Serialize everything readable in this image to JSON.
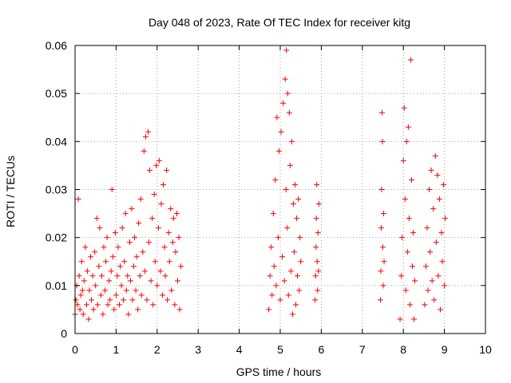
{
  "chart_data": {
    "type": "scatter",
    "title": "Day 048 of 2023, Rate Of TEC Index for receiver kitg",
    "xlabel": "GPS time / hours",
    "ylabel": "ROTI / TECUs",
    "xlim": [
      0,
      10
    ],
    "ylim": [
      0,
      0.06
    ],
    "xticks": [
      "0",
      "1",
      "2",
      "3",
      "4",
      "5",
      "6",
      "7",
      "8",
      "9",
      "10"
    ],
    "yticks": [
      "0",
      "0.01",
      "0.02",
      "0.03",
      "0.04",
      "0.05",
      "0.06"
    ],
    "grid": true,
    "marker": "+",
    "color": "#ff0000",
    "series": [
      {
        "name": "ROTI",
        "points": [
          [
            0.0,
            0.004
          ],
          [
            0.02,
            0.007
          ],
          [
            0.04,
            0.01
          ],
          [
            0.06,
            0.006
          ],
          [
            0.08,
            0.028
          ],
          [
            0.1,
            0.012
          ],
          [
            0.12,
            0.005
          ],
          [
            0.14,
            0.008
          ],
          [
            0.16,
            0.015
          ],
          [
            0.18,
            0.009
          ],
          [
            0.2,
            0.004
          ],
          [
            0.22,
            0.011
          ],
          [
            0.25,
            0.018
          ],
          [
            0.28,
            0.006
          ],
          [
            0.3,
            0.013
          ],
          [
            0.33,
            0.003
          ],
          [
            0.35,
            0.009
          ],
          [
            0.38,
            0.016
          ],
          [
            0.4,
            0.007
          ],
          [
            0.43,
            0.012
          ],
          [
            0.45,
            0.005
          ],
          [
            0.48,
            0.017
          ],
          [
            0.5,
            0.01
          ],
          [
            0.53,
            0.024
          ],
          [
            0.55,
            0.006
          ],
          [
            0.58,
            0.014
          ],
          [
            0.6,
            0.022
          ],
          [
            0.63,
            0.008
          ],
          [
            0.65,
            0.012
          ],
          [
            0.68,
            0.004
          ],
          [
            0.7,
            0.018
          ],
          [
            0.73,
            0.009
          ],
          [
            0.75,
            0.015
          ],
          [
            0.78,
            0.02
          ],
          [
            0.8,
            0.006
          ],
          [
            0.83,
            0.011
          ],
          [
            0.85,
            0.007
          ],
          [
            0.88,
            0.013
          ],
          [
            0.9,
            0.03
          ],
          [
            0.92,
            0.016
          ],
          [
            0.95,
            0.005
          ],
          [
            0.98,
            0.021
          ],
          [
            1.0,
            0.008
          ],
          [
            1.03,
            0.012
          ],
          [
            1.05,
            0.018
          ],
          [
            1.08,
            0.006
          ],
          [
            1.1,
            0.014
          ],
          [
            1.13,
            0.01
          ],
          [
            1.15,
            0.022
          ],
          [
            1.18,
            0.007
          ],
          [
            1.2,
            0.015
          ],
          [
            1.23,
            0.025
          ],
          [
            1.25,
            0.009
          ],
          [
            1.28,
            0.012
          ],
          [
            1.3,
            0.004
          ],
          [
            1.33,
            0.019
          ],
          [
            1.35,
            0.011
          ],
          [
            1.38,
            0.026
          ],
          [
            1.4,
            0.007
          ],
          [
            1.43,
            0.014
          ],
          [
            1.45,
            0.02
          ],
          [
            1.48,
            0.009
          ],
          [
            1.5,
            0.016
          ],
          [
            1.53,
            0.005
          ],
          [
            1.55,
            0.023
          ],
          [
            1.58,
            0.012
          ],
          [
            1.6,
            0.028
          ],
          [
            1.62,
            0.008
          ],
          [
            1.65,
            0.017
          ],
          [
            1.68,
            0.038
          ],
          [
            1.7,
            0.013
          ],
          [
            1.72,
            0.041
          ],
          [
            1.75,
            0.007
          ],
          [
            1.78,
            0.042
          ],
          [
            1.8,
            0.019
          ],
          [
            1.82,
            0.034
          ],
          [
            1.85,
            0.011
          ],
          [
            1.88,
            0.024
          ],
          [
            1.9,
            0.006
          ],
          [
            1.93,
            0.029
          ],
          [
            1.95,
            0.015
          ],
          [
            1.98,
            0.035
          ],
          [
            2.0,
            0.01
          ],
          [
            2.03,
            0.022
          ],
          [
            2.05,
            0.036
          ],
          [
            2.08,
            0.013
          ],
          [
            2.1,
            0.027
          ],
          [
            2.13,
            0.008
          ],
          [
            2.15,
            0.031
          ],
          [
            2.18,
            0.018
          ],
          [
            2.2,
            0.012
          ],
          [
            2.23,
            0.034
          ],
          [
            2.25,
            0.007
          ],
          [
            2.28,
            0.021
          ],
          [
            2.3,
            0.015
          ],
          [
            2.33,
            0.026
          ],
          [
            2.35,
            0.009
          ],
          [
            2.38,
            0.019
          ],
          [
            2.4,
            0.024
          ],
          [
            2.43,
            0.006
          ],
          [
            2.45,
            0.017
          ],
          [
            2.48,
            0.025
          ],
          [
            2.5,
            0.011
          ],
          [
            2.53,
            0.02
          ],
          [
            2.55,
            0.005
          ],
          [
            2.58,
            0.014
          ],
          [
            4.72,
            0.005
          ],
          [
            4.75,
            0.012
          ],
          [
            4.78,
            0.018
          ],
          [
            4.8,
            0.008
          ],
          [
            4.83,
            0.025
          ],
          [
            4.85,
            0.014
          ],
          [
            4.88,
            0.032
          ],
          [
            4.9,
            0.01
          ],
          [
            4.92,
            0.045
          ],
          [
            4.95,
            0.02
          ],
          [
            4.97,
            0.038
          ],
          [
            5.0,
            0.007
          ],
          [
            5.02,
            0.042
          ],
          [
            5.05,
            0.016
          ],
          [
            5.07,
            0.048
          ],
          [
            5.1,
            0.011
          ],
          [
            5.12,
            0.053
          ],
          [
            5.14,
            0.03
          ],
          [
            5.15,
            0.059
          ],
          [
            5.17,
            0.022
          ],
          [
            5.18,
            0.05
          ],
          [
            5.2,
            0.008
          ],
          [
            5.22,
            0.046
          ],
          [
            5.24,
            0.035
          ],
          [
            5.26,
            0.013
          ],
          [
            5.28,
            0.04
          ],
          [
            5.3,
            0.004
          ],
          [
            5.32,
            0.027
          ],
          [
            5.34,
            0.017
          ],
          [
            5.36,
            0.031
          ],
          [
            5.38,
            0.006
          ],
          [
            5.4,
            0.024
          ],
          [
            5.42,
            0.012
          ],
          [
            5.44,
            0.028
          ],
          [
            5.46,
            0.009
          ],
          [
            5.48,
            0.02
          ],
          [
            5.5,
            0.015
          ],
          [
            5.85,
            0.007
          ],
          [
            5.86,
            0.012
          ],
          [
            5.87,
            0.018
          ],
          [
            5.88,
            0.024
          ],
          [
            5.89,
            0.031
          ],
          [
            5.9,
            0.015
          ],
          [
            5.91,
            0.009
          ],
          [
            5.92,
            0.021
          ],
          [
            5.93,
            0.013
          ],
          [
            5.94,
            0.027
          ],
          [
            7.44,
            0.007
          ],
          [
            7.45,
            0.013
          ],
          [
            7.46,
            0.022
          ],
          [
            7.47,
            0.03
          ],
          [
            7.48,
            0.046
          ],
          [
            7.49,
            0.04
          ],
          [
            7.5,
            0.018
          ],
          [
            7.51,
            0.01
          ],
          [
            7.52,
            0.025
          ],
          [
            7.53,
            0.015
          ],
          [
            7.92,
            0.003
          ],
          [
            7.95,
            0.012
          ],
          [
            7.97,
            0.02
          ],
          [
            8.0,
            0.036
          ],
          [
            8.02,
            0.047
          ],
          [
            8.04,
            0.028
          ],
          [
            8.06,
            0.009
          ],
          [
            8.08,
            0.04
          ],
          [
            8.1,
            0.017
          ],
          [
            8.12,
            0.043
          ],
          [
            8.14,
            0.024
          ],
          [
            8.16,
            0.006
          ],
          [
            8.18,
            0.057
          ],
          [
            8.2,
            0.032
          ],
          [
            8.22,
            0.014
          ],
          [
            8.24,
            0.021
          ],
          [
            8.26,
            0.003
          ],
          [
            8.28,
            0.011
          ],
          [
            8.52,
            0.006
          ],
          [
            8.55,
            0.014
          ],
          [
            8.58,
            0.022
          ],
          [
            8.6,
            0.009
          ],
          [
            8.63,
            0.03
          ],
          [
            8.65,
            0.017
          ],
          [
            8.68,
            0.034
          ],
          [
            8.7,
            0.011
          ],
          [
            8.73,
            0.026
          ],
          [
            8.75,
            0.007
          ],
          [
            8.78,
            0.037
          ],
          [
            8.8,
            0.019
          ],
          [
            8.83,
            0.033
          ],
          [
            8.85,
            0.012
          ],
          [
            8.88,
            0.028
          ],
          [
            8.9,
            0.005
          ],
          [
            8.93,
            0.021
          ],
          [
            8.95,
            0.015
          ],
          [
            8.98,
            0.031
          ],
          [
            9.0,
            0.01
          ],
          [
            9.02,
            0.024
          ]
        ]
      }
    ]
  }
}
